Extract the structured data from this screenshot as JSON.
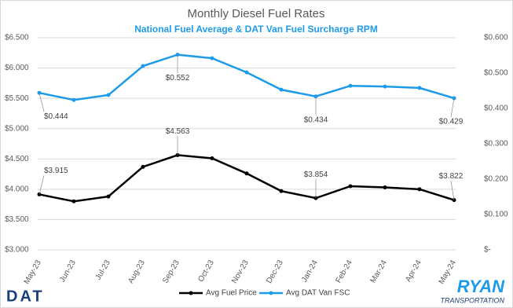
{
  "chart_data": {
    "type": "line",
    "title": "Monthly Diesel Fuel Rates",
    "subtitle": "National Fuel Average & DAT Van Fuel Surcharge RPM",
    "categories": [
      "May-23",
      "Jun-23",
      "Jul-23",
      "Aug-23",
      "Sep-23",
      "Oct-23",
      "Nov-23",
      "Dec-23",
      "Jan-24",
      "Feb-24",
      "Mar-24",
      "Apr-24",
      "May-24"
    ],
    "series": [
      {
        "name": "Avg Fuel Price",
        "color": "#000000",
        "values": [
          3.915,
          3.8,
          3.88,
          4.37,
          4.563,
          4.51,
          4.26,
          3.97,
          3.854,
          4.05,
          4.03,
          4.0,
          3.822
        ],
        "value_labels": [
          "$3.915",
          null,
          null,
          null,
          "$4.563",
          null,
          null,
          null,
          "$3.854",
          null,
          null,
          null,
          "$3.822"
        ]
      },
      {
        "name": "Avg DAT Van FSC",
        "color": "#1e9be8",
        "axis": "y2",
        "values": [
          0.444,
          0.424,
          0.438,
          0.52,
          0.552,
          0.542,
          0.502,
          0.453,
          0.434,
          0.464,
          0.462,
          0.458,
          0.429
        ],
        "value_labels": [
          "$0.444",
          null,
          null,
          null,
          "$0.552",
          null,
          null,
          null,
          "$0.434",
          null,
          null,
          null,
          "$0.429"
        ]
      }
    ],
    "ylim": [
      3,
      6.5
    ],
    "yticks": [
      {
        "value": 3,
        "label": "$3.000"
      },
      {
        "value": 3.5,
        "label": "$3.500"
      },
      {
        "value": 4,
        "label": "$4.000"
      },
      {
        "value": 4.5,
        "label": "$4.500"
      },
      {
        "value": 5,
        "label": "$5.000"
      },
      {
        "value": 5.5,
        "label": "$5.500"
      },
      {
        "value": 6,
        "label": "$6.000"
      },
      {
        "value": 6.5,
        "label": "$6.500"
      }
    ],
    "y2lim": [
      0,
      0.6
    ],
    "y2ticks": [
      {
        "value": 0,
        "label": "$-"
      },
      {
        "value": 0.1,
        "label": "$0.100"
      },
      {
        "value": 0.2,
        "label": "$0.200"
      },
      {
        "value": 0.3,
        "label": "$0.300"
      },
      {
        "value": 0.4,
        "label": "$0.400"
      },
      {
        "value": 0.5,
        "label": "$0.500"
      },
      {
        "value": 0.6,
        "label": "$0.600"
      }
    ],
    "grid": true,
    "legend": "bottom"
  },
  "logos": {
    "left": "DAT",
    "right_top": "RYAN",
    "right_bottom": "TRANSPORTATION"
  }
}
